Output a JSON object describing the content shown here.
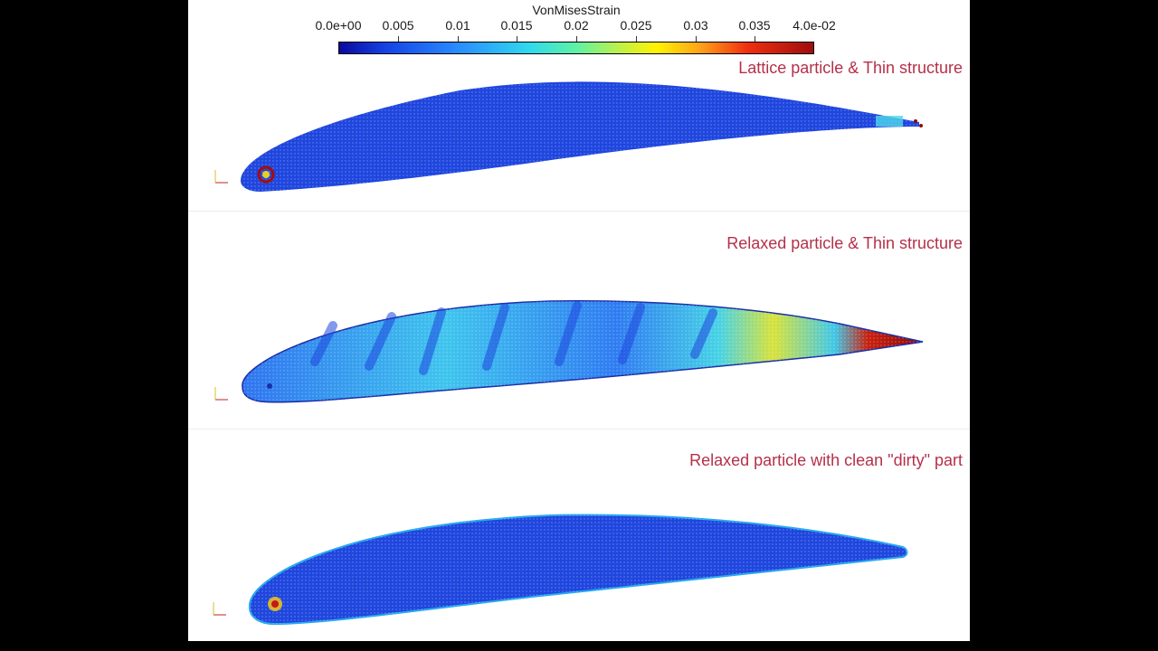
{
  "colorbar": {
    "title": "VonMisesStrain",
    "ticks": [
      "0.0e+00",
      "0.005",
      "0.01",
      "0.015",
      "0.02",
      "0.025",
      "0.03",
      "0.035",
      "4.0e-02"
    ]
  },
  "panels": [
    {
      "label": "Lattice particle & Thin structure"
    },
    {
      "label": "Relaxed particle & Thin structure"
    },
    {
      "label": "Relaxed particle with clean \"dirty\" part"
    }
  ],
  "colors": {
    "background": "#000000",
    "viewport": "#ffffff",
    "label": "#b5304a",
    "low_strain": "#1a3fe0",
    "mid_strain": "#38d8ee",
    "high_strain": "#a00c0c"
  }
}
